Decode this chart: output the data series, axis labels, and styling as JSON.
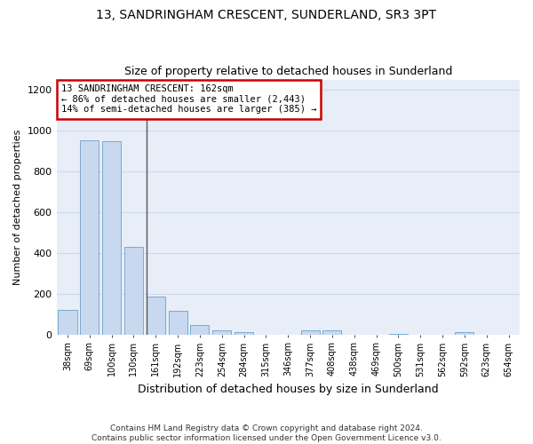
{
  "title1": "13, SANDRINGHAM CRESCENT, SUNDERLAND, SR3 3PT",
  "title2": "Size of property relative to detached houses in Sunderland",
  "xlabel": "Distribution of detached houses by size in Sunderland",
  "ylabel": "Number of detached properties",
  "categories": [
    "38sqm",
    "69sqm",
    "100sqm",
    "130sqm",
    "161sqm",
    "192sqm",
    "223sqm",
    "254sqm",
    "284sqm",
    "315sqm",
    "346sqm",
    "377sqm",
    "408sqm",
    "438sqm",
    "469sqm",
    "500sqm",
    "531sqm",
    "562sqm",
    "592sqm",
    "623sqm",
    "654sqm"
  ],
  "values": [
    120,
    950,
    948,
    430,
    185,
    115,
    45,
    20,
    10,
    0,
    0,
    20,
    20,
    0,
    0,
    5,
    0,
    0,
    10,
    0,
    0
  ],
  "bar_color": "#c8d8ef",
  "bar_edge_color": "#7aaad0",
  "annotation_text_line1": "13 SANDRINGHAM CRESCENT: 162sqm",
  "annotation_text_line2": "← 86% of detached houses are smaller (2,443)",
  "annotation_text_line3": "14% of semi-detached houses are larger (385) →",
  "annotation_box_color": "#ffffff",
  "annotation_border_color": "#cc0000",
  "vline_color": "#555555",
  "grid_color": "#d0d8e8",
  "bg_color": "#e8eef8",
  "footer_line1": "Contains HM Land Registry data © Crown copyright and database right 2024.",
  "footer_line2": "Contains public sector information licensed under the Open Government Licence v3.0.",
  "ylim": [
    0,
    1250
  ],
  "yticks": [
    0,
    200,
    400,
    600,
    800,
    1000,
    1200
  ],
  "vline_x_index": 4
}
